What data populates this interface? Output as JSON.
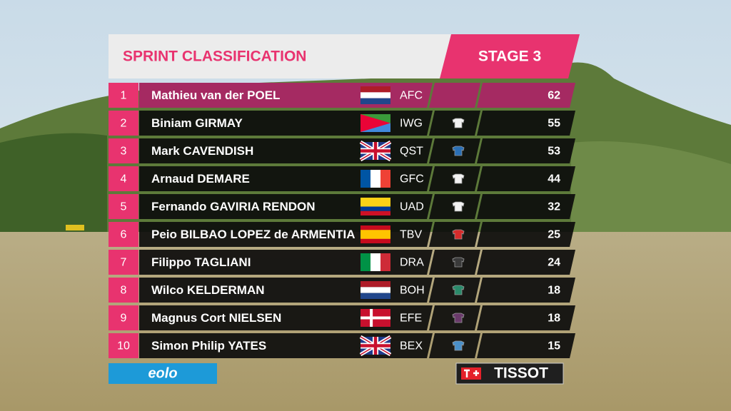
{
  "header": {
    "title": "SPRINT CLASSIFICATION",
    "stage": "STAGE 3"
  },
  "table": {
    "rows": [
      [
        "1",
        "Mathieu van der POEL",
        "AFC",
        "62"
      ],
      [
        "2",
        "Biniam GIRMAY",
        "IWG",
        "55"
      ],
      [
        "3",
        "Mark CAVENDISH",
        "QST",
        "53"
      ],
      [
        "4",
        "Arnaud DEMARE",
        "GFC",
        "44"
      ],
      [
        "5",
        "Fernando GAVIRIA RENDON",
        "UAD",
        "32"
      ],
      [
        "6",
        "Peio BILBAO LOPEZ de ARMENTIA",
        "TBV",
        "25"
      ],
      [
        "7",
        "Filippo TAGLIANI",
        "DRA",
        "24"
      ],
      [
        "8",
        "Wilco KELDERMAN",
        "BOH",
        "18"
      ],
      [
        "9",
        "Magnus Cort NIELSEN",
        "EFE",
        "18"
      ],
      [
        "10",
        "Simon Philip YATES",
        "BEX",
        "15"
      ]
    ]
  },
  "sponsors": {
    "left": "eolo",
    "right": "TISSOT"
  }
}
